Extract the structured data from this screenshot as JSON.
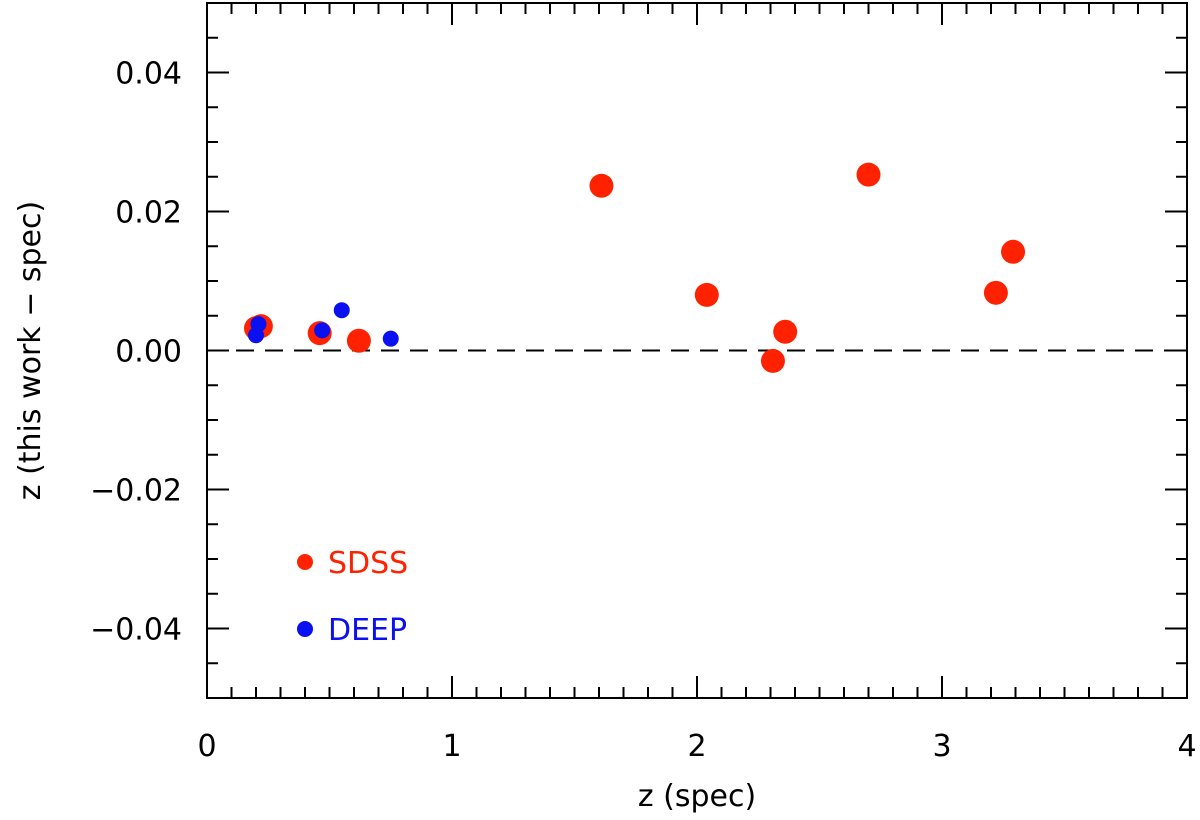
{
  "chart_data": {
    "type": "scatter",
    "title": "",
    "xlabel": "z (spec)",
    "ylabel": "z (this work − spec)",
    "xlim": [
      0,
      4
    ],
    "ylim": [
      -0.05,
      0.05
    ],
    "x_major_ticks": [
      0,
      1,
      2,
      3,
      4
    ],
    "x_tick_labels": [
      "0",
      "1",
      "2",
      "3",
      "4"
    ],
    "x_minor_step": 0.1,
    "y_major_ticks": [
      -0.04,
      -0.02,
      0.0,
      0.02,
      0.04
    ],
    "y_tick_labels": [
      "−0.04",
      "−0.02",
      "0.00",
      "0.02",
      "0.04"
    ],
    "y_minor_step": 0.005,
    "reference_line": {
      "y": 0.0,
      "style": "dashed"
    },
    "legend_position": "lower-left",
    "series": [
      {
        "name": "SDSS",
        "color": "#ff2200",
        "marker": "large-circle",
        "points": [
          [
            0.2,
            0.0032
          ],
          [
            0.22,
            0.0035
          ],
          [
            0.46,
            0.0025
          ],
          [
            0.62,
            0.0014
          ],
          [
            1.61,
            0.0237
          ],
          [
            2.04,
            0.008
          ],
          [
            2.31,
            -0.0015
          ],
          [
            2.36,
            0.0027
          ],
          [
            2.7,
            0.0253
          ],
          [
            3.22,
            0.0083
          ],
          [
            3.29,
            0.0142
          ]
        ]
      },
      {
        "name": "DEEP",
        "color": "#0a10f0",
        "marker": "small-circle",
        "points": [
          [
            0.2,
            0.0022
          ],
          [
            0.21,
            0.0038
          ],
          [
            0.47,
            0.0029
          ],
          [
            0.55,
            0.0058
          ],
          [
            0.75,
            0.0017
          ]
        ]
      }
    ]
  }
}
